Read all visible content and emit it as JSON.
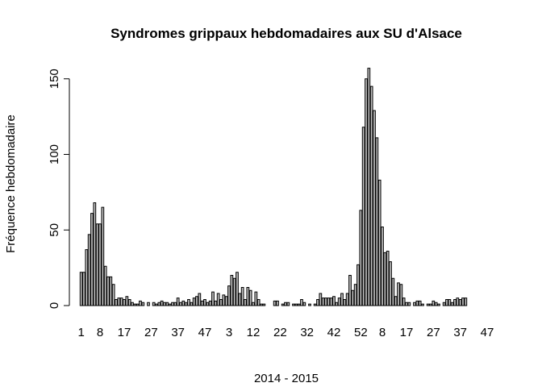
{
  "chart_data": {
    "type": "bar",
    "title": "Syndromes grippaux hebdomadaires aux SU d'Alsace",
    "xlabel": "2014 - 2015",
    "ylabel": "Fréquence hebdomadaire",
    "ylim": [
      0,
      160
    ],
    "yticks": [
      0,
      50,
      100,
      150
    ],
    "grid": false,
    "legend": "none",
    "bar_color": "#bebebe",
    "x_tick_labels": [
      {
        "index": 0,
        "label": "1"
      },
      {
        "index": 7,
        "label": "8"
      },
      {
        "index": 16,
        "label": "17"
      },
      {
        "index": 26,
        "label": "27"
      },
      {
        "index": 36,
        "label": "37"
      },
      {
        "index": 46,
        "label": "47"
      },
      {
        "index": 55,
        "label": "3"
      },
      {
        "index": 64,
        "label": "12"
      },
      {
        "index": 74,
        "label": "22"
      },
      {
        "index": 84,
        "label": "32"
      },
      {
        "index": 94,
        "label": "42"
      },
      {
        "index": 104,
        "label": "52"
      },
      {
        "index": 112,
        "label": "8"
      },
      {
        "index": 121,
        "label": "17"
      },
      {
        "index": 131,
        "label": "27"
      },
      {
        "index": 141,
        "label": "37"
      },
      {
        "index": 151,
        "label": "47"
      }
    ],
    "values": [
      22,
      22,
      37,
      47,
      61,
      68,
      54,
      54,
      65,
      26,
      19,
      19,
      14,
      4,
      5,
      5,
      4,
      6,
      4,
      2,
      1,
      1,
      3,
      2,
      0,
      2,
      0,
      2,
      1,
      2,
      3,
      2,
      2,
      1,
      2,
      2,
      5,
      2,
      3,
      2,
      4,
      2,
      5,
      6,
      8,
      3,
      4,
      2,
      3,
      9,
      3,
      8,
      4,
      7,
      6,
      13,
      20,
      18,
      22,
      8,
      12,
      4,
      12,
      10,
      2,
      9,
      4,
      1,
      1,
      0,
      0,
      0,
      3,
      3,
      0,
      1,
      2,
      2,
      0,
      1,
      1,
      1,
      4,
      2,
      0,
      1,
      0,
      1,
      4,
      8,
      5,
      5,
      5,
      5,
      6,
      2,
      5,
      8,
      4,
      8,
      20,
      10,
      14,
      27,
      63,
      118,
      150,
      157,
      145,
      129,
      111,
      83,
      52,
      35,
      36,
      29,
      18,
      6,
      15,
      14,
      5,
      2,
      2,
      0,
      2,
      3,
      3,
      1,
      0,
      1,
      1,
      3,
      2,
      1,
      0,
      2,
      4,
      4,
      2,
      4,
      5,
      4,
      5,
      5
    ]
  }
}
